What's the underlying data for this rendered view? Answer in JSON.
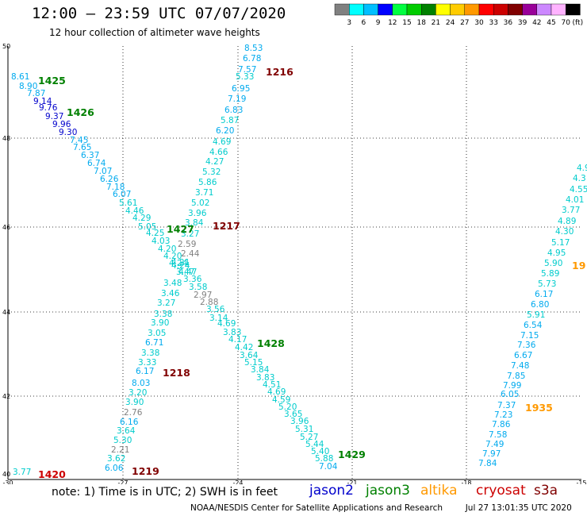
{
  "header": {
    "title": "12:00 – 23:59 UTC 07/07/2020",
    "subtitle": "12 hour collection of altimeter wave heights"
  },
  "legend": {
    "colors": [
      "#808080",
      "#00ffff",
      "#00bfff",
      "#0000ff",
      "#00ff40",
      "#00cc00",
      "#008000",
      "#ffff00",
      "#ffcc00",
      "#ff9900",
      "#ff0000",
      "#cc0000",
      "#800000",
      "#990099",
      "#cc88ff",
      "#ffb3ff",
      "#000000"
    ],
    "labels": [
      "3",
      "6",
      "9",
      "12",
      "15",
      "18",
      "21",
      "24",
      "27",
      "30",
      "33",
      "36",
      "39",
      "42",
      "45",
      "70",
      "(ft)"
    ]
  },
  "map": {
    "lat_labels": [
      "40",
      "42",
      "44",
      "46",
      "48",
      "50"
    ],
    "lon_labels": [
      "-30",
      "-27",
      "-24",
      "-21",
      "-18",
      "-15"
    ],
    "lat_range": [
      40,
      50
    ],
    "lon_range": [
      -30,
      -15
    ]
  },
  "tracks": [
    {
      "name": "track-a",
      "values": [
        "8.61",
        "8.90",
        "7.87",
        "9.14",
        "9.76",
        "9.37",
        "9.96",
        "9.30",
        "7.45",
        "7.65",
        "6.37",
        "6.74",
        "7.07",
        "6.26",
        "7.18",
        "6.07",
        "5.61",
        "4.46",
        "4.29",
        "5.05",
        "4.25",
        "4.03",
        "4.20",
        "4.20",
        "4.24",
        "4.24",
        "4.47",
        "3.36",
        "3.58",
        "2.97",
        "2.88",
        "3.56",
        "3.14",
        "4.69",
        "3.83",
        "4.17",
        "4.42",
        "3.64",
        "5.15",
        "3.84",
        "3.83",
        "4.51",
        "4.69",
        "4.59",
        "5.20",
        "3.65",
        "3.96",
        "5.31",
        "5.27",
        "5.44",
        "5.40",
        "5.88",
        "7.04"
      ]
    },
    {
      "name": "track-b",
      "values": [
        "8.53",
        "6.78",
        "7.57",
        "5.33",
        "6.95",
        "7.19",
        "6.83",
        "5.87",
        "6.20",
        "4.69",
        "4.66",
        "4.27",
        "5.32",
        "5.86",
        "3.71",
        "5.02",
        "3.96",
        "3.84",
        "3.27",
        "2.59",
        "2.44",
        "3.47",
        "4.21",
        "3.48",
        "3.46",
        "3.27",
        "3.38",
        "3.90",
        "3.05",
        "6.71",
        "3.38",
        "3.33",
        "6.17",
        "8.03",
        "3.20",
        "3.90",
        "2.76",
        "6.16",
        "3.64",
        "5.30",
        "2.21",
        "3.62",
        "6.06"
      ]
    },
    {
      "name": "track-c",
      "values": [
        "4.9",
        "4.3",
        "4.55",
        "4.01",
        "3.77",
        "4.89",
        "4.30",
        "5.17",
        "4.95",
        "5.90",
        "5.89",
        "5.73",
        "6.17",
        "6.80",
        "5.91",
        "6.54",
        "7.15",
        "7.36",
        "6.67",
        "7.48",
        "7.85",
        "7.99",
        "6.05",
        "7.37",
        "7.23",
        "7.86",
        "7.58",
        "7.49",
        "7.97",
        "7.84"
      ]
    },
    {
      "name": "track-d",
      "values": [
        "3.77"
      ]
    }
  ],
  "time_labels": [
    {
      "text": "1425",
      "color": "#008000"
    },
    {
      "text": "1426",
      "color": "#008000"
    },
    {
      "text": "1427",
      "color": "#008000"
    },
    {
      "text": "1428",
      "color": "#008000"
    },
    {
      "text": "1429",
      "color": "#008000"
    },
    {
      "text": "1216",
      "color": "#800000"
    },
    {
      "text": "1217",
      "color": "#800000"
    },
    {
      "text": "1218",
      "color": "#800000"
    },
    {
      "text": "1219",
      "color": "#800000"
    },
    {
      "text": "1420",
      "color": "#cc0000"
    },
    {
      "text": "1935",
      "color": "#ff9900"
    },
    {
      "text": "19",
      "color": "#ff9900"
    }
  ],
  "footer": {
    "note": "note:  1) Time is in UTC;  2) SWH is in feet",
    "satellites": [
      {
        "name": "jason2",
        "color": "#0000cc"
      },
      {
        "name": "jason3",
        "color": "#008000"
      },
      {
        "name": "altika",
        "color": "#ff9900"
      },
      {
        "name": "cryosat",
        "color": "#cc0000"
      },
      {
        "name": "s3a",
        "color": "#800000"
      }
    ],
    "credit": "NOAA/NESDIS Center for Satellite Applications and Research",
    "timestamp": "Jul 27 13:01:35 UTC 2020"
  }
}
